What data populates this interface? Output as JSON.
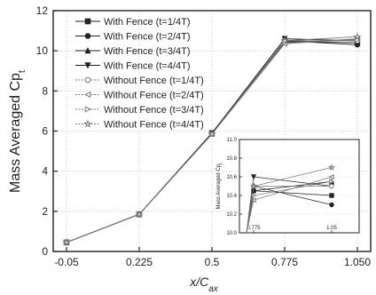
{
  "chart_data": [
    {
      "type": "line",
      "title": "",
      "xlabel": "x/C_ax",
      "ylabel": "Mass Averaged Cp_t",
      "x_categories": [
        "-0.05",
        "0.225",
        "0.5",
        "0.775",
        "1.050"
      ],
      "yticks": [
        "0",
        "2",
        "4",
        "6",
        "8",
        "10",
        "12"
      ],
      "ylim": [
        0,
        12
      ],
      "grid": true,
      "legend_position": "top-left",
      "colors": {
        "with_fence": "#222222",
        "without_fence": "#777777",
        "grid": "#bfbfbf"
      },
      "series": [
        {
          "name": "With Fence (t=1/4T)",
          "marker": "square",
          "values": [
            0.45,
            1.85,
            5.9,
            10.45,
            10.4
          ]
        },
        {
          "name": "With Fence (t=2/4T)",
          "marker": "circle",
          "values": [
            0.45,
            1.85,
            5.9,
            10.5,
            10.3
          ]
        },
        {
          "name": "With Fence (t=3/4T)",
          "marker": "triangle-up",
          "values": [
            0.45,
            1.85,
            5.9,
            10.45,
            10.55
          ]
        },
        {
          "name": "With Fence (t=4/4T)",
          "marker": "triangle-down",
          "values": [
            0.45,
            1.85,
            5.9,
            10.6,
            10.5
          ]
        },
        {
          "name": "Without Fence (t=1/4T)",
          "marker": "circle",
          "values": [
            0.45,
            1.85,
            5.85,
            10.5,
            10.5
          ]
        },
        {
          "name": "Without Fence (t=2/4T)",
          "marker": "triangle-left",
          "values": [
            0.45,
            1.85,
            5.85,
            10.35,
            10.6
          ]
        },
        {
          "name": "Without Fence (t=3/4T)",
          "marker": "triangle-right",
          "values": [
            0.45,
            1.85,
            5.85,
            10.4,
            10.55
          ]
        },
        {
          "name": "Without Fence (t=4/4T)",
          "marker": "star",
          "values": [
            0.45,
            1.85,
            5.85,
            10.5,
            10.7
          ]
        }
      ]
    },
    {
      "type": "line",
      "title": "",
      "xlabel": "",
      "ylabel": "Mass Averaged Cp_t",
      "x_categories": [
        "0.775",
        "1.05"
      ],
      "yticks": [
        "10.0",
        "10.2",
        "10.4",
        "10.6",
        "10.8",
        "11.0"
      ],
      "ylim": [
        10.0,
        11.0
      ],
      "grid": true
    }
  ]
}
